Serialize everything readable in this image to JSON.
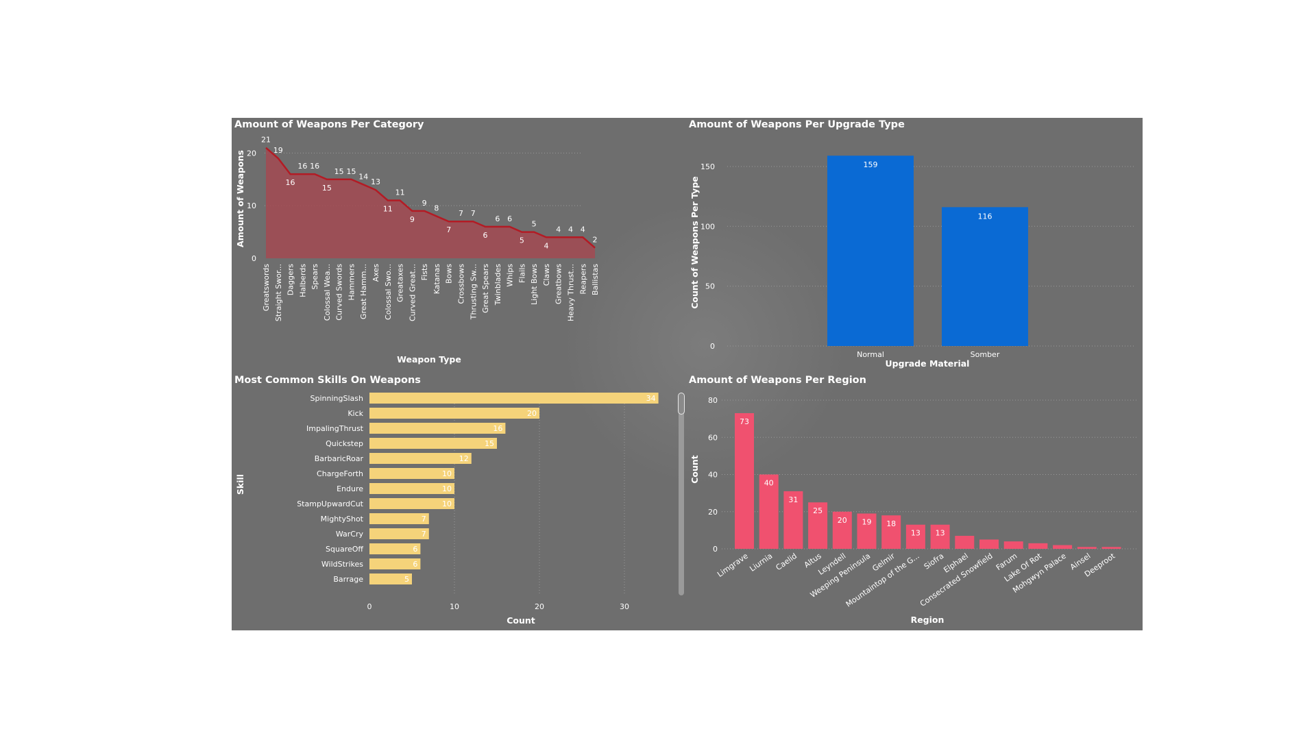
{
  "colors": {
    "area_fill": "#a34a52",
    "area_line": "#b31b24",
    "upgrade_bar": "#0a6ad4",
    "skill_bar": "#f5d37a",
    "region_bar": "#f0516f",
    "text": "#ffffff",
    "grid": "#9a9a9a"
  },
  "charts": {
    "category": {
      "title": "Amount of Weapons Per Category",
      "chart_data": {
        "type": "area",
        "title": "Amount of Weapons Per Category",
        "xlabel": "Weapon Type",
        "ylabel": "Amount of Weapons",
        "categories": [
          "Greatswords",
          "Straight Swor...",
          "Daggers",
          "Halberds",
          "Spears",
          "Colossal Wea...",
          "Curved Swords",
          "Hammers",
          "Great Hamm...",
          "Axes",
          "Colossal Swo...",
          "Greataxes",
          "Curved Great...",
          "Fists",
          "Katanas",
          "Bows",
          "Crossbows",
          "Thrusting Sw...",
          "Great Spears",
          "Twinblades",
          "Whips",
          "Flails",
          "Light Bows",
          "Claws",
          "Greatbows",
          "Heavy Thrust...",
          "Reapers",
          "Ballistas"
        ],
        "values": [
          21,
          19,
          16,
          16,
          16,
          15,
          15,
          15,
          14,
          13,
          11,
          11,
          9,
          9,
          8,
          7,
          7,
          7,
          6,
          6,
          6,
          5,
          5,
          4,
          4,
          4,
          4,
          2
        ],
        "ylim": [
          0,
          22
        ],
        "yticks": [
          0,
          10,
          20
        ],
        "grid": true
      }
    },
    "upgrade": {
      "title": "Amount of Weapons Per Upgrade Type",
      "chart_data": {
        "type": "bar",
        "title": "Amount of Weapons Per Upgrade Type",
        "xlabel": "Upgrade Material",
        "ylabel": "Count of Weapons Per Type",
        "categories": [
          "Normal",
          "Somber"
        ],
        "values": [
          159,
          116
        ],
        "ylim": [
          0,
          170
        ],
        "yticks": [
          0,
          50,
          100,
          150
        ],
        "grid": true
      }
    },
    "skills": {
      "title": "Most Common Skills On Weapons",
      "chart_data": {
        "type": "bar",
        "orientation": "horizontal",
        "title": "Most Common Skills On Weapons",
        "xlabel": "Count",
        "ylabel": "Skill",
        "categories": [
          "SpinningSlash",
          "Kick",
          "ImpalingThrust",
          "Quickstep",
          "BarbaricRoar",
          "ChargeForth",
          "Endure",
          "StampUpwardCut",
          "MightyShot",
          "WarCry",
          "SquareOff",
          "WildStrikes",
          "Barrage"
        ],
        "values": [
          34,
          20,
          16,
          15,
          12,
          10,
          10,
          10,
          7,
          7,
          6,
          6,
          5
        ],
        "xlim": [
          0,
          36
        ],
        "xticks": [
          0,
          10,
          20,
          30
        ],
        "grid": true
      }
    },
    "region": {
      "title": "Amount of Weapons Per Region",
      "chart_data": {
        "type": "bar",
        "title": "Amount of Weapons Per Region",
        "xlabel": "Region",
        "ylabel": "Count",
        "categories": [
          "Limgrave",
          "Liurnia",
          "Caelid",
          "Altus",
          "Leyndell",
          "Weeping Peninsula",
          "Gelmir",
          "Mountaintop of the G...",
          "Siofra",
          "Elphael",
          "Consecrated Snowfield",
          "Farum",
          "Lake Of Rot",
          "Mohgwyn Palace",
          "Ainsel",
          "Deeproot"
        ],
        "values": [
          73,
          40,
          31,
          25,
          20,
          19,
          18,
          13,
          13,
          7,
          5,
          4,
          3,
          2,
          1,
          1
        ],
        "labeled": [
          true,
          true,
          true,
          true,
          true,
          true,
          true,
          true,
          true,
          false,
          false,
          false,
          false,
          false,
          false,
          false
        ],
        "ylim": [
          0,
          80
        ],
        "yticks": [
          0,
          20,
          40,
          60,
          80
        ],
        "grid": true
      }
    }
  }
}
